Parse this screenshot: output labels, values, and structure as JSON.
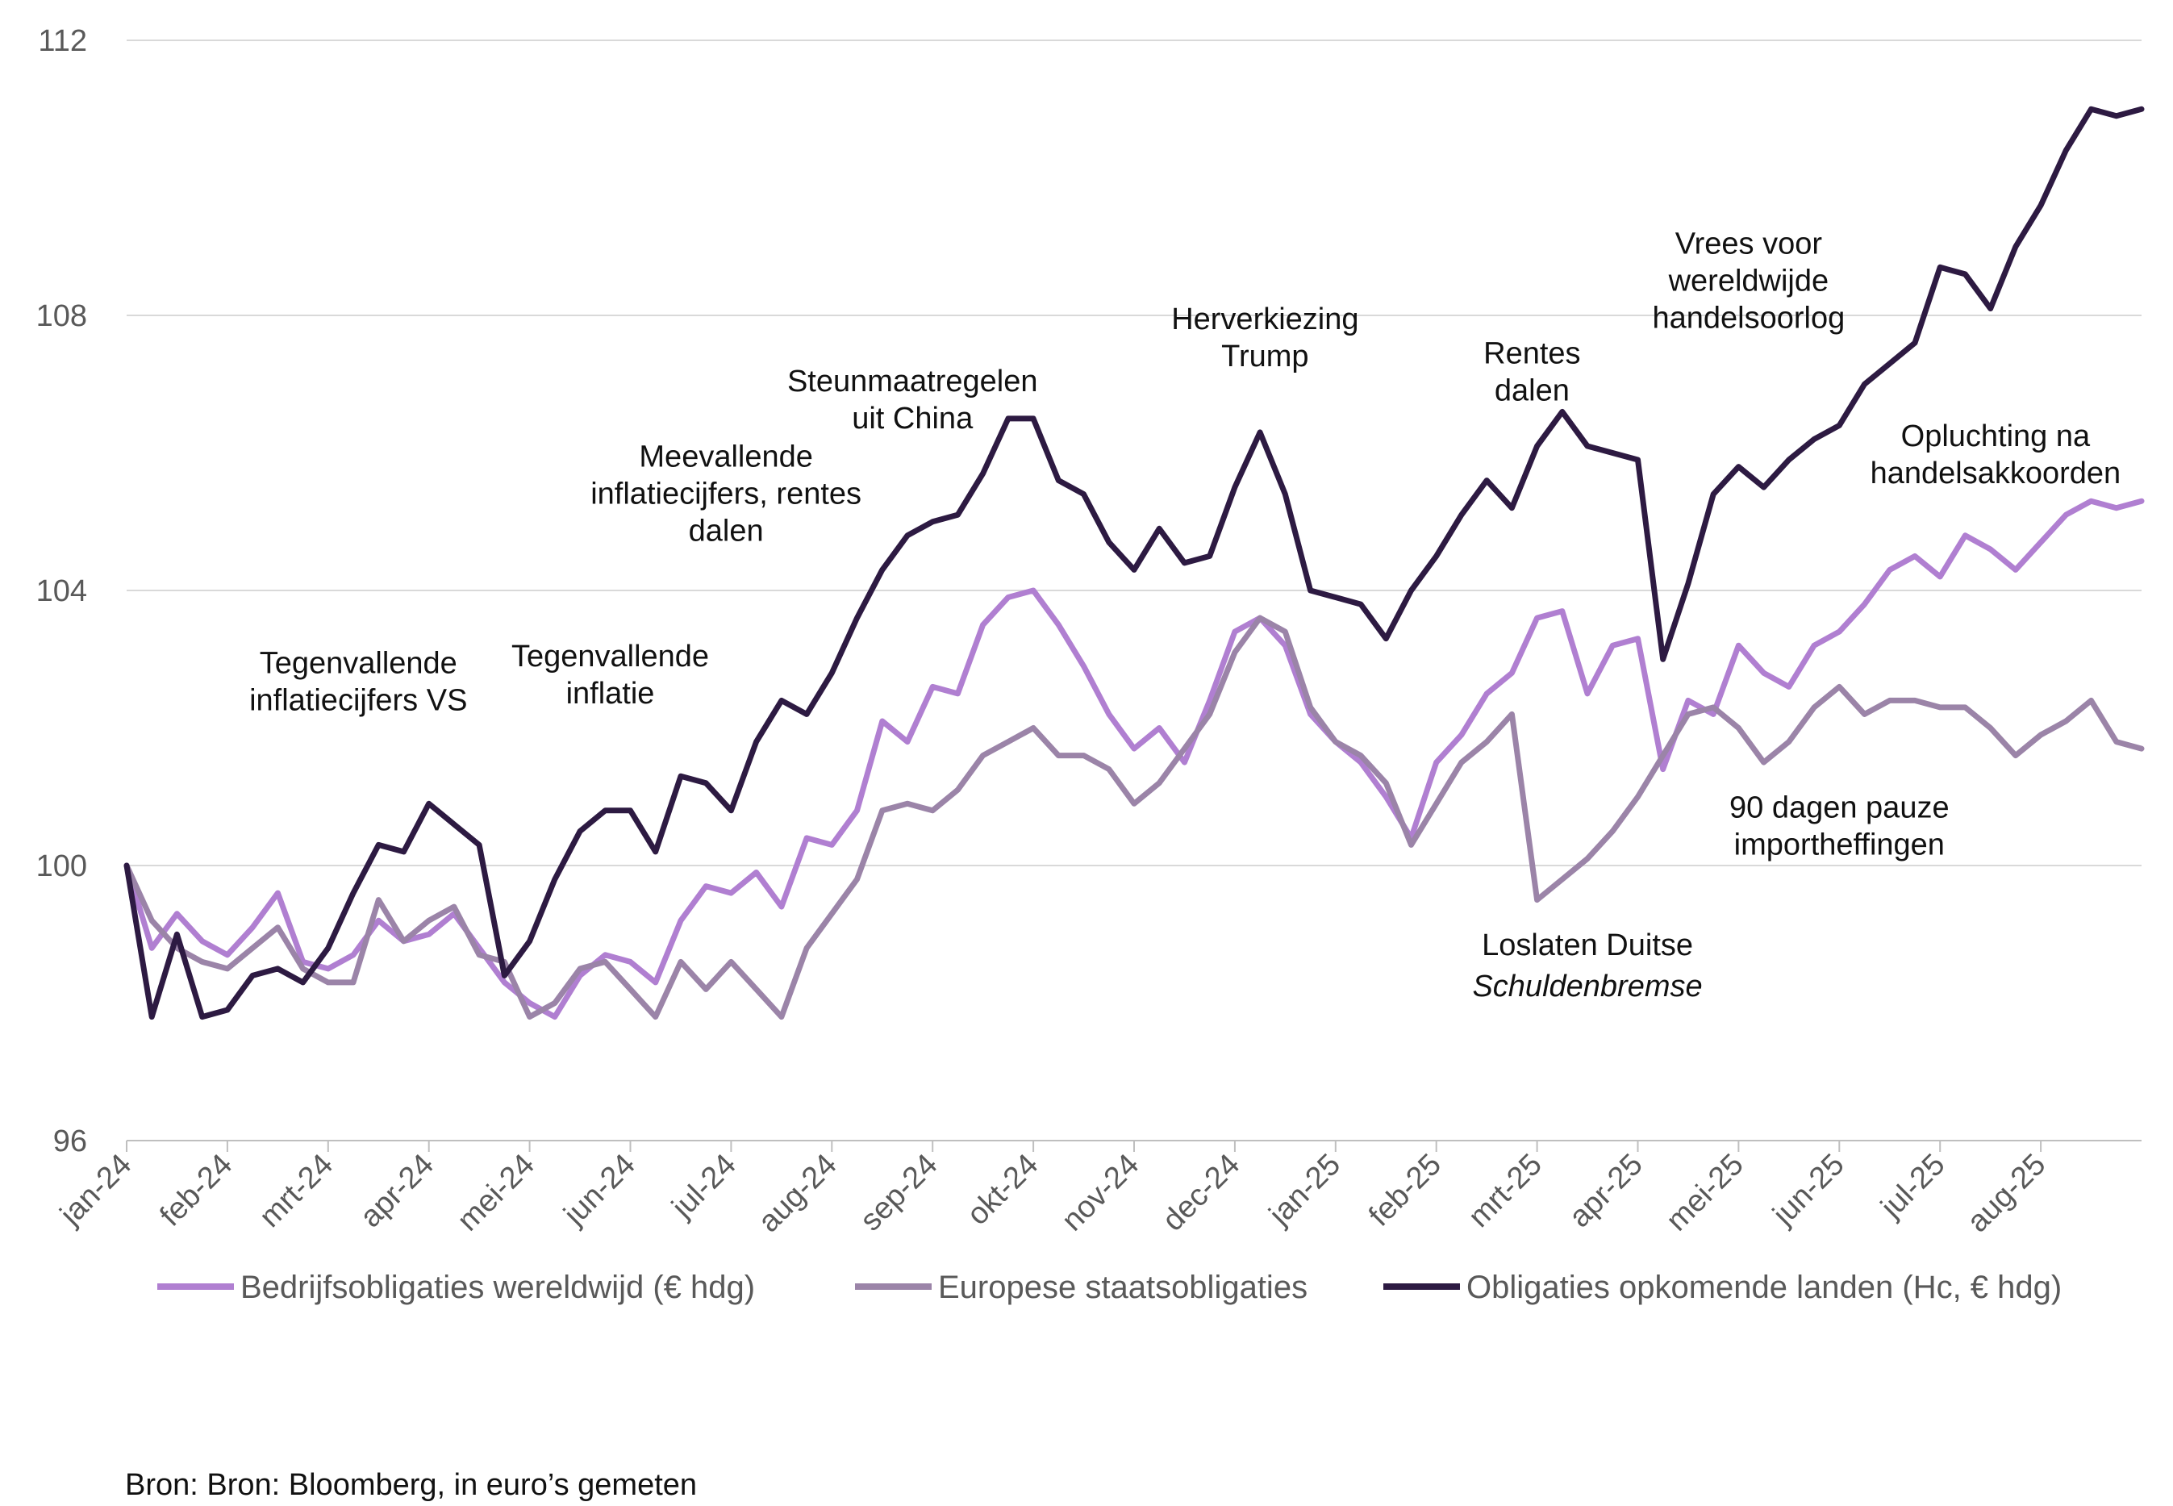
{
  "source": "Bron: Bron: Bloomberg, in euro’s gemeten",
  "chart_data": {
    "type": "line",
    "ylim": [
      96,
      112
    ],
    "yticks": [
      96,
      100,
      104,
      108,
      112
    ],
    "ytick_labels": [
      "96",
      "100",
      "104",
      "108",
      "112"
    ],
    "x_range": [
      0,
      20.0
    ],
    "xtick_labels": [
      "jan-24",
      "feb-24",
      "mrt-24",
      "apr-24",
      "mei-24",
      "jun-24",
      "jul-24",
      "aug-24",
      "sep-24",
      "okt-24",
      "nov-24",
      "dec-24",
      "jan-25",
      "feb-25",
      "mrt-25",
      "apr-25",
      "mei-25",
      "jun-25",
      "jul-25",
      "aug-25"
    ],
    "grid": "horizontal",
    "legend_position": "bottom",
    "series": [
      {
        "name": "Bedrijfsobligaties wereldwijd (€ hdg)",
        "color": "#b07fd1",
        "x": [
          0,
          0.25,
          0.5,
          0.75,
          1,
          1.25,
          1.5,
          1.75,
          2,
          2.25,
          2.5,
          2.75,
          3,
          3.25,
          3.5,
          3.75,
          4,
          4.25,
          4.5,
          4.75,
          5,
          5.25,
          5.5,
          5.75,
          6,
          6.25,
          6.5,
          6.75,
          7,
          7.25,
          7.5,
          7.75,
          8,
          8.25,
          8.5,
          8.75,
          9,
          9.25,
          9.5,
          9.75,
          10,
          10.25,
          10.5,
          10.75,
          11,
          11.25,
          11.5,
          11.75,
          12,
          12.25,
          12.5,
          12.75,
          13,
          13.25,
          13.5,
          13.75,
          14,
          14.25,
          14.5,
          14.75,
          15,
          15.25,
          15.5,
          15.75,
          16,
          16.25,
          16.5,
          16.75,
          17,
          17.25,
          17.5,
          17.75,
          18,
          18.25,
          18.5,
          18.75,
          19,
          19.25,
          19.5,
          19.75,
          20
        ],
        "y": [
          100,
          98.8,
          99.3,
          98.9,
          98.7,
          99.1,
          99.6,
          98.6,
          98.5,
          98.7,
          99.2,
          98.9,
          99.0,
          99.3,
          98.8,
          98.3,
          98.0,
          97.8,
          98.4,
          98.7,
          98.6,
          98.3,
          99.2,
          99.7,
          99.6,
          99.9,
          99.4,
          100.4,
          100.3,
          100.8,
          102.1,
          101.8,
          102.6,
          102.5,
          103.5,
          103.9,
          104.0,
          103.5,
          102.9,
          102.2,
          101.7,
          102.0,
          101.5,
          102.4,
          103.4,
          103.6,
          103.2,
          102.2,
          101.8,
          101.5,
          101.0,
          100.4,
          101.5,
          101.9,
          102.5,
          102.8,
          103.6,
          103.7,
          102.5,
          103.2,
          103.3,
          101.4,
          102.4,
          102.2,
          103.2,
          102.8,
          102.6,
          103.2,
          103.4,
          103.8,
          104.3,
          104.5,
          104.2,
          104.8,
          104.6,
          104.3,
          104.7,
          105.1,
          105.3,
          105.2,
          105.3
        ]
      },
      {
        "name": "Europese staatsobligaties",
        "color": "#9b84a8",
        "x": [
          0,
          0.25,
          0.5,
          0.75,
          1,
          1.25,
          1.5,
          1.75,
          2,
          2.25,
          2.5,
          2.75,
          3,
          3.25,
          3.5,
          3.75,
          4,
          4.25,
          4.5,
          4.75,
          5,
          5.25,
          5.5,
          5.75,
          6,
          6.25,
          6.5,
          6.75,
          7,
          7.25,
          7.5,
          7.75,
          8,
          8.25,
          8.5,
          8.75,
          9,
          9.25,
          9.5,
          9.75,
          10,
          10.25,
          10.5,
          10.75,
          11,
          11.25,
          11.5,
          11.75,
          12,
          12.25,
          12.5,
          12.75,
          13,
          13.25,
          13.5,
          13.75,
          14,
          14.25,
          14.5,
          14.75,
          15,
          15.25,
          15.5,
          15.75,
          16,
          16.25,
          16.5,
          16.75,
          17,
          17.25,
          17.5,
          17.75,
          18,
          18.25,
          18.5,
          18.75,
          19,
          19.25,
          19.5,
          19.75,
          20
        ],
        "y": [
          100,
          99.2,
          98.8,
          98.6,
          98.5,
          98.8,
          99.1,
          98.5,
          98.3,
          98.3,
          99.5,
          98.9,
          99.2,
          99.4,
          98.7,
          98.6,
          97.8,
          98.0,
          98.5,
          98.6,
          98.2,
          97.8,
          98.6,
          98.2,
          98.6,
          98.2,
          97.8,
          98.8,
          99.3,
          99.8,
          100.8,
          100.9,
          100.8,
          101.1,
          101.6,
          101.8,
          102.0,
          101.6,
          101.6,
          101.4,
          100.9,
          101.2,
          101.7,
          102.2,
          103.1,
          103.6,
          103.4,
          102.3,
          101.8,
          101.6,
          101.2,
          100.3,
          100.9,
          101.5,
          101.8,
          102.2,
          99.5,
          99.8,
          100.1,
          100.5,
          101.0,
          101.6,
          102.2,
          102.3,
          102.0,
          101.5,
          101.8,
          102.3,
          102.6,
          102.2,
          102.4,
          102.4,
          102.3,
          102.3,
          102.0,
          101.6,
          101.9,
          102.1,
          102.4,
          101.8,
          101.7
        ]
      },
      {
        "name": "Obligaties opkomende landen (Hc, € hdg)",
        "color": "#2d1a42",
        "x": [
          0,
          0.25,
          0.5,
          0.75,
          1,
          1.25,
          1.5,
          1.75,
          2,
          2.25,
          2.5,
          2.75,
          3,
          3.25,
          3.5,
          3.75,
          4,
          4.25,
          4.5,
          4.75,
          5,
          5.25,
          5.5,
          5.75,
          6,
          6.25,
          6.5,
          6.75,
          7,
          7.25,
          7.5,
          7.75,
          8,
          8.25,
          8.5,
          8.75,
          9,
          9.25,
          9.5,
          9.75,
          10,
          10.25,
          10.5,
          10.75,
          11,
          11.25,
          11.5,
          11.75,
          12,
          12.25,
          12.5,
          12.75,
          13,
          13.25,
          13.5,
          13.75,
          14,
          14.25,
          14.5,
          14.75,
          15,
          15.25,
          15.5,
          15.75,
          16,
          16.25,
          16.5,
          16.75,
          17,
          17.25,
          17.5,
          17.75,
          18,
          18.25,
          18.5,
          18.75,
          19,
          19.25,
          19.5,
          19.75,
          20
        ],
        "y": [
          100,
          97.8,
          99.0,
          97.8,
          97.9,
          98.4,
          98.5,
          98.3,
          98.8,
          99.6,
          100.3,
          100.2,
          100.9,
          100.6,
          100.3,
          98.4,
          98.9,
          99.8,
          100.5,
          100.8,
          100.8,
          100.2,
          101.3,
          101.2,
          100.8,
          101.8,
          102.4,
          102.2,
          102.8,
          103.6,
          104.3,
          104.8,
          105.0,
          105.1,
          105.7,
          106.5,
          106.5,
          105.6,
          105.4,
          104.7,
          104.3,
          104.9,
          104.4,
          104.5,
          105.5,
          106.3,
          105.4,
          104.0,
          103.9,
          103.8,
          103.3,
          104.0,
          104.5,
          105.1,
          105.6,
          105.2,
          106.1,
          106.6,
          106.1,
          106.0,
          105.9,
          103.0,
          104.1,
          105.4,
          105.8,
          105.5,
          105.9,
          106.2,
          106.4,
          107.0,
          107.3,
          107.6,
          108.7,
          108.6,
          108.1,
          109.0,
          109.6,
          110.4,
          111.0,
          110.9,
          111.0
        ]
      }
    ],
    "annotations": [
      {
        "lines": [
          "Tegenvallende",
          "inflatiecijfers VS"
        ],
        "x": 2.3,
        "y": 102.8
      },
      {
        "lines": [
          "Tegenvallende",
          "inflatie"
        ],
        "x": 4.8,
        "y": 102.9
      },
      {
        "lines": [
          "Meevallende",
          "inflatiecijfers, rentes",
          "dalen"
        ],
        "x": 5.95,
        "y": 105.8
      },
      {
        "lines": [
          "Steunmaatregelen",
          "uit China"
        ],
        "x": 7.8,
        "y": 106.9
      },
      {
        "lines": [
          "Herverkiezing",
          "Trump"
        ],
        "x": 11.3,
        "y": 107.8
      },
      {
        "lines": [
          "Rentes",
          "dalen"
        ],
        "x": 13.95,
        "y": 107.3
      },
      {
        "lines": [
          "Vrees voor",
          "wereldwijde",
          "handelsoorlog"
        ],
        "x": 16.1,
        "y": 108.9
      },
      {
        "lines": [
          "Opluchting na",
          "handelsakkoorden"
        ],
        "x": 18.55,
        "y": 106.1
      },
      {
        "lines": [
          "90 dagen pauze",
          "importheffingen"
        ],
        "x": 17.0,
        "y": 100.7
      },
      {
        "lines": [
          "Loslaten Duitse"
        ],
        "x": 14.5,
        "y": 98.7
      },
      {
        "lines": [
          "Schuldenbremse"
        ],
        "x": 14.5,
        "y": 98.1,
        "italic": true
      }
    ]
  }
}
